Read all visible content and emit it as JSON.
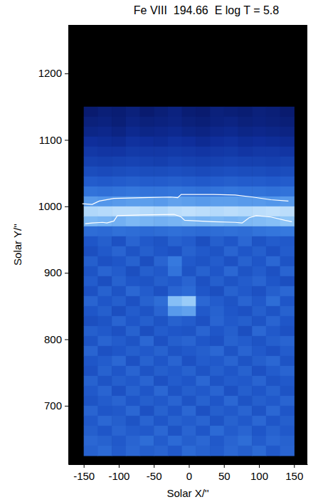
{
  "chart_data": {
    "type": "heatmap",
    "title": "Fe VIII  194.66  E log T = 5.8",
    "x_label": "Solar X/''",
    "y_label": "Solar Y/''",
    "xlim": [
      -172,
      169
    ],
    "ylim": [
      612,
      1273
    ],
    "xticks": [
      -150,
      -100,
      -50,
      0,
      50,
      100,
      150
    ],
    "yticks": [
      700,
      800,
      900,
      1000,
      1100,
      1200
    ],
    "zlim": [
      0,
      100
    ],
    "x_edges": [
      -150,
      -130,
      -110,
      -90,
      -70,
      -50,
      -30,
      -10,
      10,
      30,
      50,
      70,
      90,
      110,
      130,
      150
    ],
    "y_edges": [
      1150,
      1135,
      1120,
      1105,
      1090,
      1075,
      1060,
      1045,
      1030,
      1015,
      1000,
      985,
      970,
      955,
      940,
      925,
      910,
      895,
      880,
      865,
      850,
      835,
      820,
      805,
      790,
      775,
      760,
      745,
      730,
      715,
      700,
      685,
      670,
      655,
      640,
      625
    ],
    "cells": [
      [
        22,
        24,
        23,
        25,
        22,
        24,
        26,
        23,
        22,
        25,
        24,
        23,
        25,
        24,
        22
      ],
      [
        25,
        26,
        24,
        27,
        25,
        26,
        27,
        25,
        24,
        26,
        27,
        25,
        26,
        25,
        24
      ],
      [
        28,
        29,
        27,
        30,
        28,
        29,
        30,
        28,
        27,
        29,
        30,
        28,
        29,
        28,
        27
      ],
      [
        33,
        32,
        31,
        34,
        33,
        32,
        34,
        33,
        31,
        33,
        34,
        32,
        33,
        32,
        31
      ],
      [
        37,
        36,
        36,
        38,
        37,
        37,
        38,
        37,
        36,
        37,
        38,
        36,
        37,
        37,
        36
      ],
      [
        41,
        40,
        41,
        42,
        41,
        40,
        42,
        41,
        40,
        41,
        42,
        41,
        41,
        40,
        41
      ],
      [
        46,
        45,
        46,
        47,
        46,
        46,
        47,
        46,
        45,
        46,
        47,
        46,
        46,
        45,
        46
      ],
      [
        52,
        51,
        52,
        53,
        52,
        52,
        53,
        52,
        51,
        52,
        53,
        52,
        52,
        51,
        52
      ],
      [
        60,
        59,
        60,
        61,
        60,
        60,
        61,
        60,
        59,
        60,
        61,
        60,
        60,
        59,
        60
      ],
      [
        72,
        71,
        72,
        73,
        73,
        72,
        74,
        73,
        72,
        73,
        73,
        72,
        72,
        71,
        72
      ],
      [
        90,
        91,
        92,
        92,
        91,
        90,
        92,
        93,
        92,
        91,
        92,
        91,
        92,
        93,
        92
      ],
      [
        80,
        79,
        78,
        80,
        79,
        78,
        79,
        80,
        79,
        80,
        79,
        80,
        81,
        82,
        84
      ],
      [
        58,
        57,
        59,
        58,
        57,
        58,
        59,
        58,
        57,
        58,
        59,
        58,
        60,
        61,
        62
      ],
      [
        50,
        53,
        48,
        55,
        51,
        49,
        54,
        52,
        47,
        53,
        50,
        56,
        49,
        52,
        51
      ],
      [
        47,
        51,
        55,
        49,
        53,
        50,
        48,
        54,
        51,
        49,
        55,
        50,
        53,
        48,
        52
      ],
      [
        53,
        48,
        50,
        54,
        47,
        55,
        62,
        51,
        49,
        52,
        48,
        54,
        50,
        56,
        49
      ],
      [
        49,
        55,
        52,
        47,
        53,
        51,
        60,
        49,
        54,
        50,
        56,
        49,
        52,
        48,
        55
      ],
      [
        52,
        47,
        54,
        50,
        49,
        53,
        51,
        55,
        48,
        53,
        49,
        52,
        55,
        50,
        47
      ],
      [
        48,
        54,
        49,
        56,
        52,
        48,
        55,
        57,
        50,
        47,
        54,
        51,
        48,
        53,
        56
      ],
      [
        55,
        50,
        53,
        48,
        54,
        58,
        82,
        86,
        56,
        52,
        49,
        55,
        51,
        58,
        50
      ],
      [
        50,
        53,
        47,
        52,
        49,
        55,
        72,
        74,
        51,
        54,
        50,
        48,
        53,
        49,
        54
      ],
      [
        47,
        49,
        55,
        50,
        53,
        49,
        54,
        52,
        48,
        55,
        51,
        53,
        49,
        55,
        50
      ],
      [
        53,
        51,
        48,
        54,
        47,
        52,
        50,
        49,
        55,
        50,
        53,
        47,
        56,
        51,
        48
      ],
      [
        49,
        55,
        52,
        49,
        56,
        48,
        53,
        55,
        50,
        48,
        54,
        52,
        49,
        53,
        55
      ],
      [
        55,
        48,
        50,
        53,
        51,
        54,
        49,
        51,
        53,
        56,
        49,
        55,
        51,
        48,
        52
      ],
      [
        50,
        52,
        56,
        48,
        54,
        50,
        55,
        48,
        52,
        51,
        55,
        49,
        53,
        56,
        49
      ],
      [
        48,
        54,
        50,
        55,
        49,
        53,
        51,
        54,
        49,
        53,
        50,
        54,
        48,
        52,
        55
      ],
      [
        54,
        49,
        53,
        51,
        55,
        48,
        52,
        50,
        56,
        49,
        52,
        51,
        55,
        49,
        51
      ],
      [
        51,
        55,
        48,
        54,
        50,
        56,
        49,
        53,
        51,
        55,
        48,
        53,
        50,
        54,
        49
      ],
      [
        49,
        52,
        55,
        50,
        53,
        51,
        55,
        49,
        54,
        50,
        56,
        49,
        53,
        51,
        55
      ],
      [
        55,
        50,
        51,
        56,
        48,
        54,
        50,
        56,
        48,
        53,
        51,
        55,
        49,
        56,
        50
      ],
      [
        51,
        56,
        53,
        49,
        55,
        50,
        54,
        52,
        55,
        49,
        54,
        51,
        56,
        50,
        53
      ],
      [
        53,
        50,
        55,
        52,
        51,
        56,
        49,
        55,
        50,
        57,
        52,
        55,
        50,
        54,
        51
      ],
      [
        56,
        54,
        51,
        55,
        58,
        52,
        57,
        53,
        56,
        51,
        55,
        58,
        52,
        56,
        54
      ],
      [
        54,
        57,
        52,
        56,
        53,
        55,
        51,
        57,
        54,
        52,
        56,
        53,
        57,
        51,
        55
      ]
    ],
    "contours": [
      {
        "color": "#ffffff",
        "x": [
          -152,
          -138,
          -128,
          -107,
          -67,
          -26,
          -16,
          -11,
          35,
          66,
          91,
          117,
          142
        ],
        "y": [
          1004,
          1003,
          1008,
          1012,
          1013,
          1014,
          1013,
          1018,
          1018,
          1017,
          1014,
          1010,
          1008
        ]
      },
      {
        "color": "#ffffff",
        "x": [
          -148,
          -138,
          -123,
          -117,
          -107,
          -102,
          -67,
          -21,
          -11,
          -6,
          35,
          66,
          76,
          86,
          96,
          117,
          137,
          147
        ],
        "y": [
          974,
          975,
          976,
          975,
          978,
          986,
          987,
          988,
          984,
          979,
          977,
          976,
          975,
          983,
          986,
          984,
          979,
          977
        ]
      }
    ]
  }
}
